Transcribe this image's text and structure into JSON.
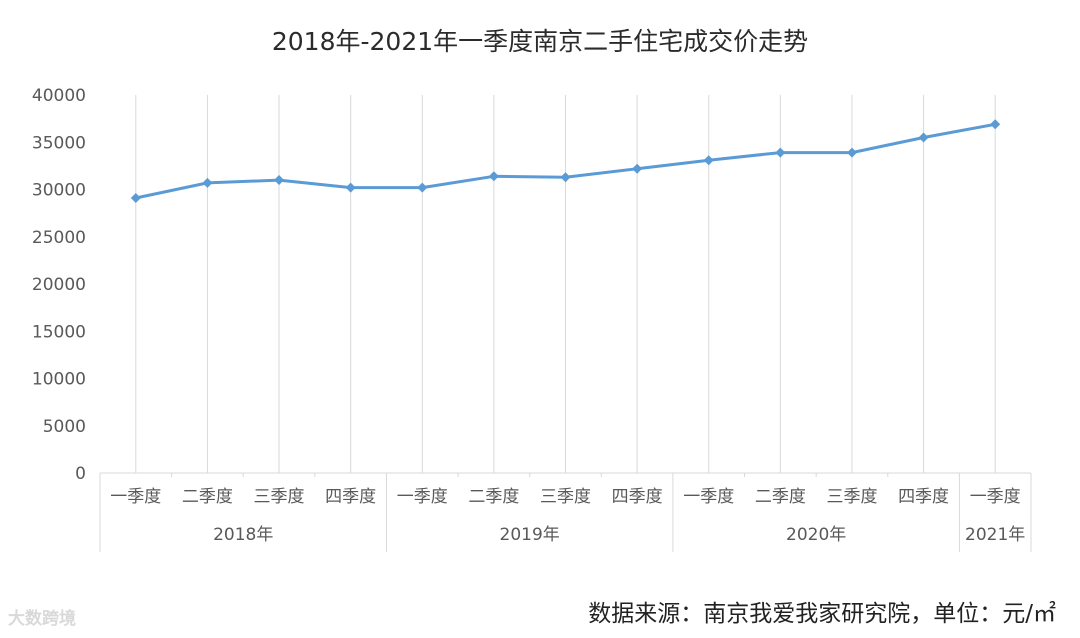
{
  "chart_data": {
    "type": "line",
    "title": "2018年-2021年一季度南京二手住宅成交价走势",
    "quarters": [
      "一季度",
      "二季度",
      "三季度",
      "四季度",
      "一季度",
      "二季度",
      "三季度",
      "四季度",
      "一季度",
      "二季度",
      "三季度",
      "四季度",
      "一季度"
    ],
    "years": [
      {
        "label": "2018年",
        "count": 4
      },
      {
        "label": "2019年",
        "count": 4
      },
      {
        "label": "2020年",
        "count": 4
      },
      {
        "label": "2021年",
        "count": 1
      }
    ],
    "values": [
      29100,
      30700,
      31000,
      30200,
      30200,
      31400,
      31300,
      32200,
      33100,
      33900,
      33900,
      35500,
      36900
    ],
    "ylim": [
      0,
      40000
    ],
    "yticks": [
      "0",
      "5000",
      "10000",
      "15000",
      "20000",
      "25000",
      "30000",
      "35000",
      "40000"
    ],
    "grid": "vertical",
    "line_color": "#5b9bd5",
    "grid_color": "#d9d9d9",
    "xlabel": "",
    "ylabel": ""
  },
  "source_note": "数据来源：南京我爱我家研究院，单位：元/㎡",
  "watermark": "大数跨境"
}
